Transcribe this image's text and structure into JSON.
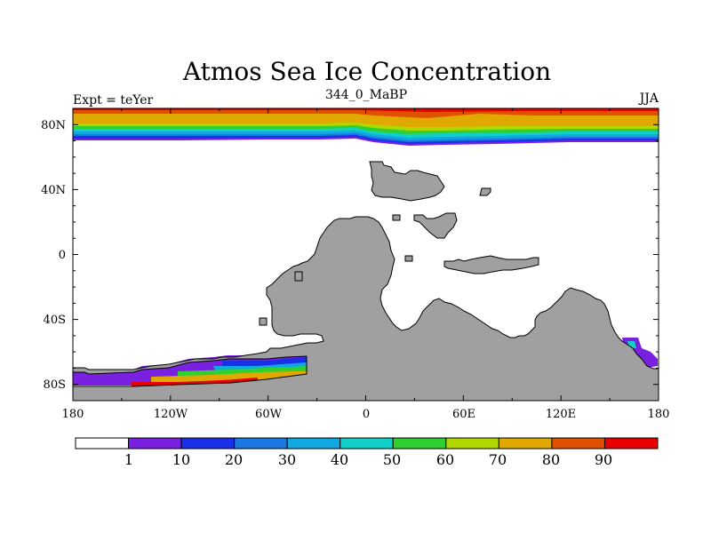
{
  "title": "Atmos Sea Ice Concentration",
  "left_string": "Expt = teYer",
  "center_string": "344_0_MaBP",
  "right_string": "JJA",
  "colors": {
    "land": "#a0a0a0",
    "ocean": "#ffffff",
    "frame": "#000000"
  },
  "x_tick_labels": [
    "180",
    "120W",
    "60W",
    "0",
    "60E",
    "120E",
    "180"
  ],
  "y_tick_labels": [
    "80N",
    "40N",
    "0",
    "40S",
    "80S"
  ],
  "colorbar": {
    "labels": [
      "1",
      "10",
      "20",
      "30",
      "40",
      "50",
      "60",
      "70",
      "80",
      "90"
    ],
    "colors": [
      "#ffffff",
      "#7a20e0",
      "#1a30e8",
      "#1a78e0",
      "#10a8e0",
      "#10d0c8",
      "#30d030",
      "#b0d800",
      "#e0a800",
      "#e05000",
      "#e80000"
    ]
  },
  "chart_data": {
    "type": "heatmap",
    "title": "Atmos Sea Ice Concentration",
    "variable": "Sea Ice Concentration",
    "units": "%",
    "experiment": "teYer",
    "period": "344_0_MaBP",
    "season": "JJA",
    "lon_range": [
      -180,
      180
    ],
    "lat_range": [
      -90,
      90
    ],
    "levels": [
      1,
      10,
      20,
      30,
      40,
      50,
      60,
      70,
      80,
      90
    ],
    "band_colors": [
      "#7a20e0",
      "#1a30e8",
      "#1a78e0",
      "#10a8e0",
      "#10d0c8",
      "#30d030",
      "#b0d800",
      "#e0a800",
      "#e05000",
      "#e80000"
    ],
    "northern_ice_band_upper_edges_lat": [
      74,
      75,
      76,
      77,
      78,
      79,
      80,
      82,
      84,
      86
    ]
  }
}
